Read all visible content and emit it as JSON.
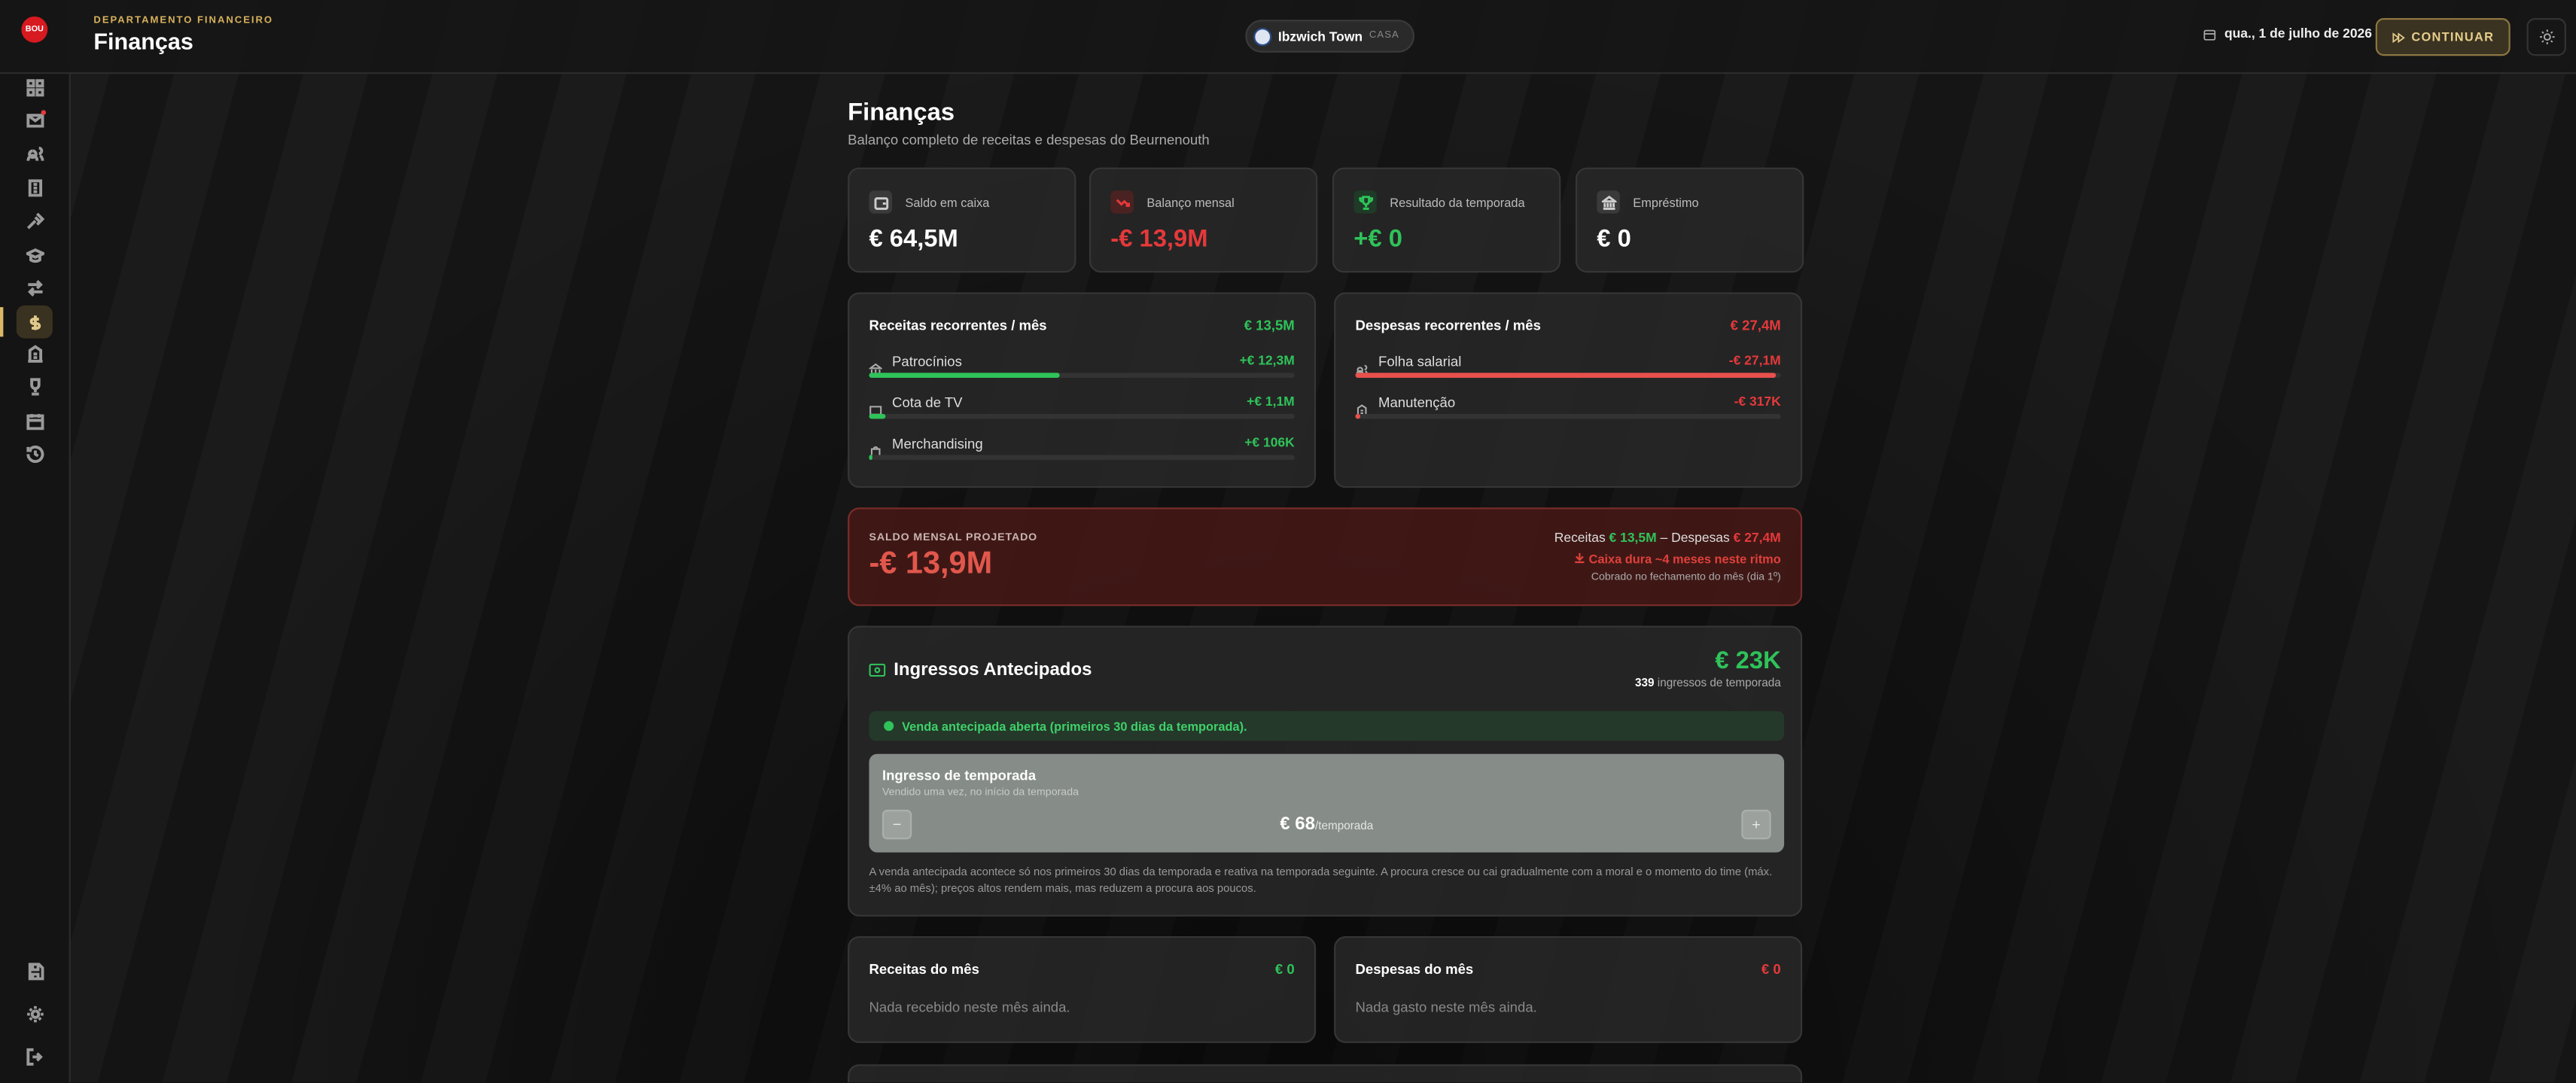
{
  "sidebar": {
    "logo": "BOU"
  },
  "header": {
    "kicker": "DEPARTAMENTO FINANCEIRO",
    "title": "Finanças",
    "club": "Ibzwich Town",
    "venue": "CASA",
    "date": "qua., 1 de julho de 2026",
    "continue": "CONTINUAR"
  },
  "page": {
    "title": "Finanças",
    "subtitle": "Balanço completo de receitas e despesas do Beurnenouth"
  },
  "stats": [
    {
      "label": "Saldo em caixa",
      "value": "€ 64,5M"
    },
    {
      "label": "Balanço mensal",
      "value": "-€ 13,9M"
    },
    {
      "label": "Resultado da temporada",
      "value": "+€ 0"
    },
    {
      "label": "Empréstimo",
      "value": "€ 0"
    }
  ],
  "recurring": [
    {
      "title": "Receitas recorrentes / mês",
      "total": "€ 13,5M",
      "total_value": 13.5,
      "items": [
        {
          "label": "Patrocínios",
          "amount": "+€ 12,3M",
          "value": 12.3
        },
        {
          "label": "Cota de TV",
          "amount": "+€ 1,1M",
          "value": 1.1
        },
        {
          "label": "Merchandising",
          "amount": "+€ 106K",
          "value": 0.106
        }
      ]
    },
    {
      "title": "Despesas recorrentes / mês",
      "total": "€ 27,4M",
      "total_value": 27.4,
      "items": [
        {
          "label": "Folha salarial",
          "amount": "-€ 27,1M",
          "value": 27.1
        },
        {
          "label": "Manutenção",
          "amount": "-€ 317K",
          "value": 0.317
        }
      ]
    }
  ],
  "projected": {
    "label": "SALDO MENSAL PROJETADO",
    "value": "-€ 13,9M",
    "receitas_label": "Receitas",
    "receitas": "€ 13,5M",
    "separator": "–",
    "despesas_label": "Despesas",
    "despesas": "€ 27,4M",
    "warning": "Caixa dura ~4 meses neste ritmo",
    "note": "Cobrado no fechamento do mês (dia 1º)"
  },
  "tickets": {
    "title": "Ingressos Antecipados",
    "revenue": "€ 23K",
    "count": "339",
    "count_label": "ingressos de temporada",
    "notice": "Venda antecipada aberta (primeiros 30 dias da temporada).",
    "ticket_title": "Ingresso de temporada",
    "ticket_subtitle": "Vendido uma vez, no início da temporada",
    "minus": "−",
    "price": "€ 68",
    "price_unit": "/temporada",
    "plus": "+",
    "footnote": "A venda antecipada acontece só nos primeiros 30 dias da temporada e reativa na temporada seguinte. A procura cresce ou cai gradualmente com a moral e o momento do time (máx. ±4% ao mês); preços altos rendem mais, mas reduzem a procura aos poucos."
  },
  "monthly": [
    {
      "title": "Receitas do mês",
      "total": "€ 0",
      "empty": "Nada recebido neste mês ainda."
    },
    {
      "title": "Despesas do mês",
      "total": "€ 0",
      "empty": "Nada gasto neste mês ainda."
    }
  ]
}
